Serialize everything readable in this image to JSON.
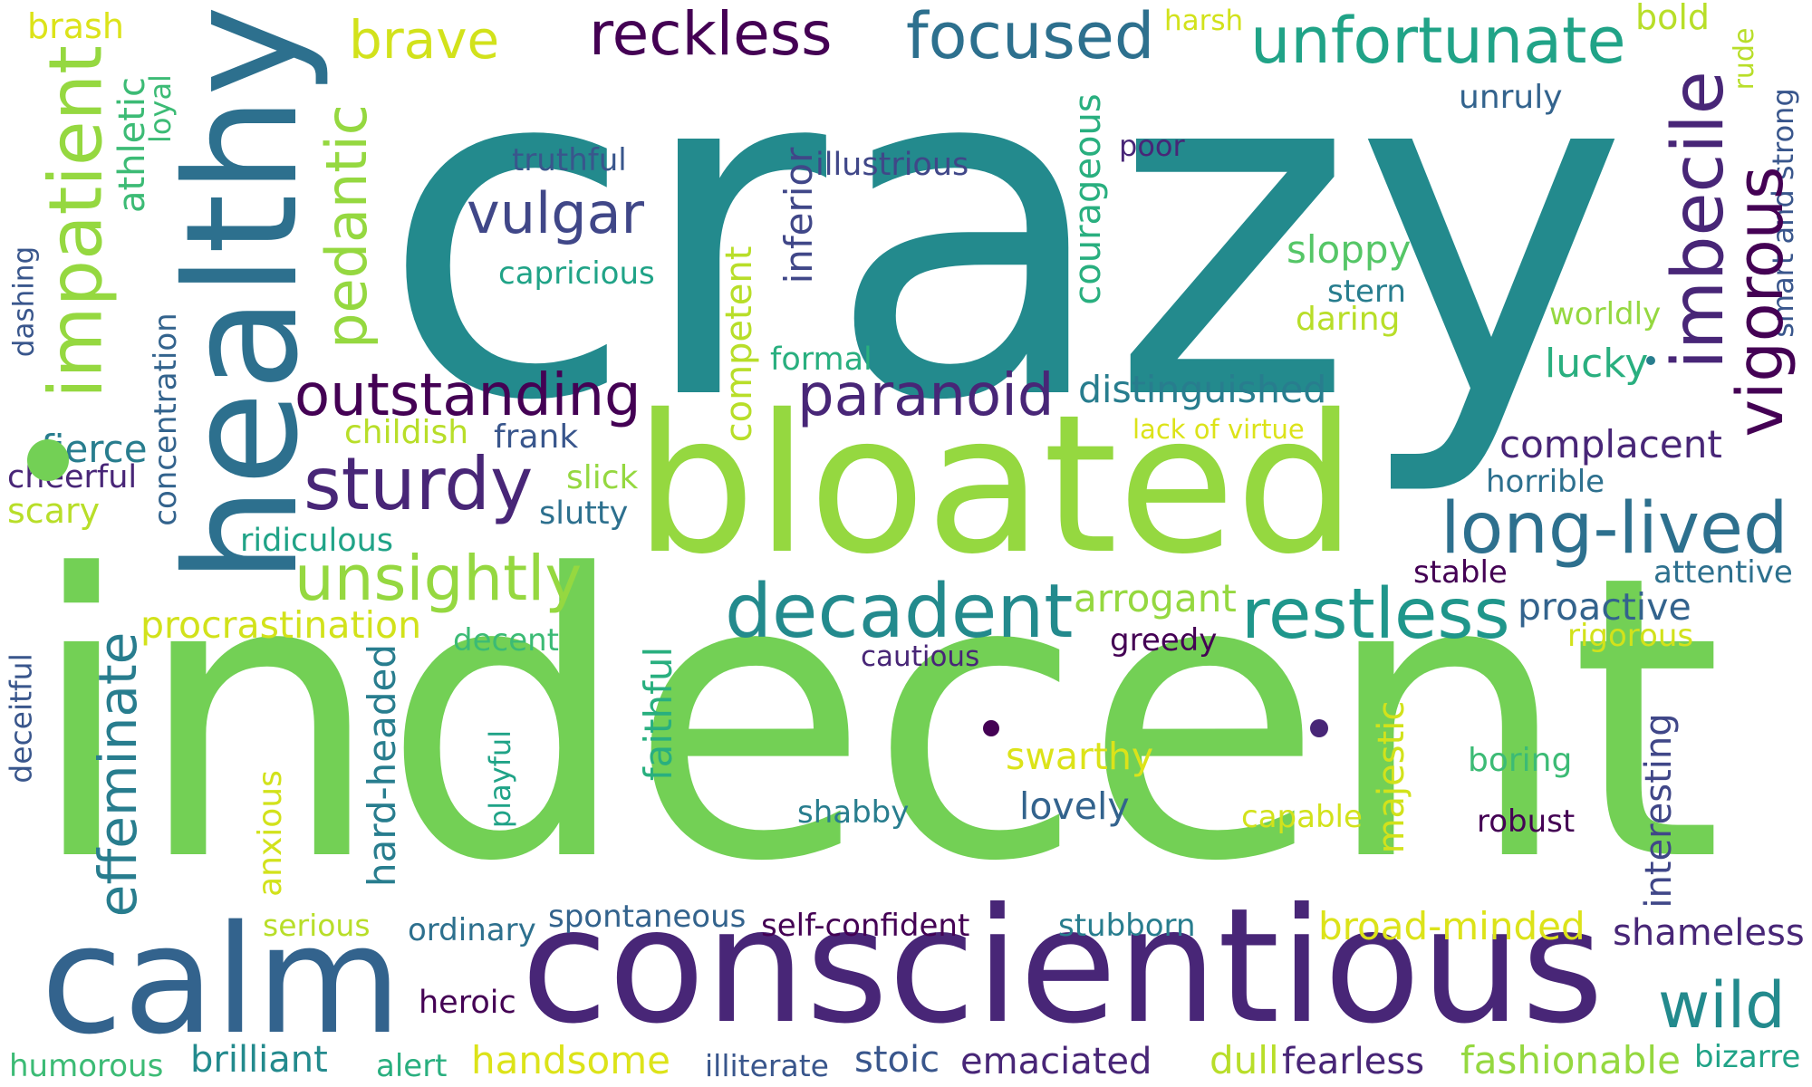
{
  "palette": {
    "dark_purple": "#440154",
    "indigo": "#482677",
    "blue_violet": "#404788",
    "steel_blue": "#39568c",
    "slate_blue": "#33638d",
    "blue_teal": "#2d708e",
    "teal_blue": "#287d8e",
    "teal": "#238a8d",
    "sea_teal": "#1f968b",
    "green_teal": "#20a387",
    "jade": "#29af7f",
    "green": "#3cbb75",
    "light_green": "#55c667",
    "grass_green": "#73d055",
    "lime": "#95d840",
    "chartreuse": "#b8de29",
    "yellow_green": "#d2e21b",
    "yellow": "#dce319"
  },
  "words": [
    {
      "text": "crazy",
      "color": "#238a8d"
    },
    {
      "text": "indecent",
      "color": "#73d055"
    },
    {
      "text": "bloated",
      "color": "#95d840"
    },
    {
      "text": "conscientious",
      "color": "#482677"
    },
    {
      "text": "healthy",
      "color": "#2d708e"
    },
    {
      "text": "calm",
      "color": "#33638d"
    },
    {
      "text": "impatient",
      "color": "#95d840"
    },
    {
      "text": "pedantic",
      "color": "#95d840"
    },
    {
      "text": "reckless",
      "color": "#440154"
    },
    {
      "text": "focused",
      "color": "#2d708e"
    },
    {
      "text": "unfortunate",
      "color": "#20a387"
    },
    {
      "text": "brave",
      "color": "#d2e21b"
    },
    {
      "text": "brash",
      "color": "#dce319"
    },
    {
      "text": "harsh",
      "color": "#d2e21b"
    },
    {
      "text": "bold",
      "color": "#b8de29"
    },
    {
      "text": "rude",
      "color": "#b8de29"
    },
    {
      "text": "smart and strong",
      "color": "#39568c"
    },
    {
      "text": "imbecile",
      "color": "#482677"
    },
    {
      "text": "vigorous",
      "color": "#440154"
    },
    {
      "text": "unruly",
      "color": "#33638d"
    },
    {
      "text": "athletic",
      "color": "#3cbb75"
    },
    {
      "text": "loyal",
      "color": "#3cbb75"
    },
    {
      "text": "truthful",
      "color": "#39568c"
    },
    {
      "text": "illustrious",
      "color": "#404788"
    },
    {
      "text": "poor",
      "color": "#482677"
    },
    {
      "text": "vulgar",
      "color": "#404788"
    },
    {
      "text": "capricious",
      "color": "#20a387"
    },
    {
      "text": "inferior",
      "color": "#404788"
    },
    {
      "text": "courageous",
      "color": "#29af7f"
    },
    {
      "text": "competent",
      "color": "#b8de29"
    },
    {
      "text": "sloppy",
      "color": "#55c667"
    },
    {
      "text": "stern",
      "color": "#287d8e"
    },
    {
      "text": "daring",
      "color": "#b8de29"
    },
    {
      "text": "worldly",
      "color": "#95d840"
    },
    {
      "text": "lucky",
      "color": "#29af7f"
    },
    {
      "text": "dashing",
      "color": "#39568c"
    },
    {
      "text": "concentration",
      "color": "#33638d"
    },
    {
      "text": "formal",
      "color": "#29af7f"
    },
    {
      "text": "outstanding",
      "color": "#440154"
    },
    {
      "text": "paranoid",
      "color": "#482677"
    },
    {
      "text": "distinguished",
      "color": "#287d8e"
    },
    {
      "text": "fierce",
      "color": "#287d8e"
    },
    {
      "text": "cheerful",
      "color": "#482677"
    },
    {
      "text": "scary",
      "color": "#b8de29"
    },
    {
      "text": "childish",
      "color": "#b8de29"
    },
    {
      "text": "frank",
      "color": "#39568c"
    },
    {
      "text": "lack of virtue",
      "color": "#dce319"
    },
    {
      "text": "complacent",
      "color": "#482677"
    },
    {
      "text": "horrible",
      "color": "#2d708e"
    },
    {
      "text": "sturdy",
      "color": "#482677"
    },
    {
      "text": "slick",
      "color": "#95d840"
    },
    {
      "text": "slutty",
      "color": "#2d708e"
    },
    {
      "text": "long-lived",
      "color": "#2d708e"
    },
    {
      "text": "ridiculous",
      "color": "#20a387"
    },
    {
      "text": "unsightly",
      "color": "#95d840"
    },
    {
      "text": "stable",
      "color": "#440154"
    },
    {
      "text": "attentive",
      "color": "#2d708e"
    },
    {
      "text": "decadent",
      "color": "#238a8d"
    },
    {
      "text": "restless",
      "color": "#1f968b"
    },
    {
      "text": "arrogant",
      "color": "#95d840"
    },
    {
      "text": "proactive",
      "color": "#33638d"
    },
    {
      "text": "rigorous",
      "color": "#d2e21b"
    },
    {
      "text": "procrastination",
      "color": "#d2e21b"
    },
    {
      "text": "decent",
      "color": "#3cbb75"
    },
    {
      "text": "greedy",
      "color": "#440154"
    },
    {
      "text": "cautious",
      "color": "#482677"
    },
    {
      "text": "effeminate",
      "color": "#287d8e"
    },
    {
      "text": "deceitful",
      "color": "#39568c"
    },
    {
      "text": "hard-headed",
      "color": "#287d8e"
    },
    {
      "text": "faithful",
      "color": "#29af7f"
    },
    {
      "text": "playful",
      "color": "#20a387"
    },
    {
      "text": "anxious",
      "color": "#d2e21b"
    },
    {
      "text": "swarthy",
      "color": "#dce319"
    },
    {
      "text": "lovely",
      "color": "#33638d"
    },
    {
      "text": "majestic",
      "color": "#d2e21b"
    },
    {
      "text": "boring",
      "color": "#3cbb75"
    },
    {
      "text": "interesting",
      "color": "#404788"
    },
    {
      "text": "shabby",
      "color": "#287d8e"
    },
    {
      "text": "capable",
      "color": "#d2e21b"
    },
    {
      "text": "robust",
      "color": "#440154"
    },
    {
      "text": "serious",
      "color": "#b8de29"
    },
    {
      "text": "ordinary",
      "color": "#2d708e"
    },
    {
      "text": "spontaneous",
      "color": "#33638d"
    },
    {
      "text": "self-confident",
      "color": "#440154"
    },
    {
      "text": "stubborn",
      "color": "#287d8e"
    },
    {
      "text": "broad-minded",
      "color": "#dce319"
    },
    {
      "text": "shameless",
      "color": "#482677"
    },
    {
      "text": "wild",
      "color": "#238a8d"
    },
    {
      "text": "heroic",
      "color": "#440154"
    },
    {
      "text": "humorous",
      "color": "#3cbb75"
    },
    {
      "text": "brilliant",
      "color": "#238a8d"
    },
    {
      "text": "alert",
      "color": "#29af7f"
    },
    {
      "text": "handsome",
      "color": "#dce319"
    },
    {
      "text": "illiterate",
      "color": "#39568c"
    },
    {
      "text": "stoic",
      "color": "#39568c"
    },
    {
      "text": "emaciated",
      "color": "#482677"
    },
    {
      "text": "dull",
      "color": "#b8de29"
    },
    {
      "text": "fearless",
      "color": "#482677"
    },
    {
      "text": "fashionable",
      "color": "#95d840"
    },
    {
      "text": "bizarre",
      "color": "#20a387"
    }
  ],
  "dots": [
    {
      "color": "#73d055"
    },
    {
      "color": "#440154"
    },
    {
      "color": "#482677"
    },
    {
      "color": "#287d8e"
    }
  ]
}
